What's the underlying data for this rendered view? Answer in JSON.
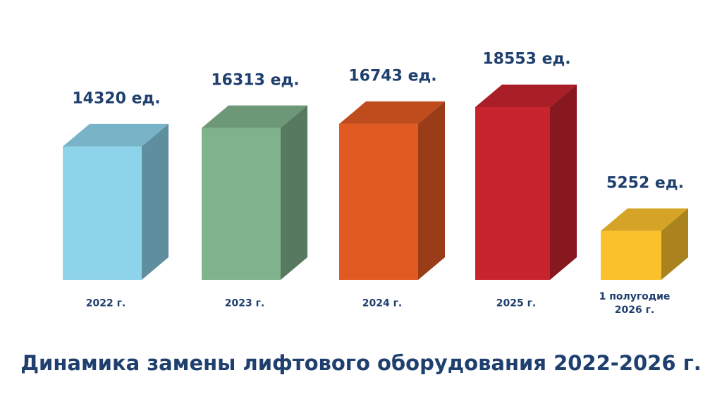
{
  "chart_data": {
    "type": "bar3d",
    "title": "Динамика замены лифтового оборудования 2022-2026 г.",
    "categories": [
      "2022 г.",
      "2023 г.",
      "2024 г.",
      "2025 г.",
      "1 полугодие 2026 г."
    ],
    "values": [
      14320,
      16313,
      16743,
      18553,
      5252
    ],
    "value_labels": [
      "14320 ед.",
      "16313 ед.",
      "16743 ед.",
      "18553 ед.",
      "5252 ед."
    ],
    "colors": [
      "#8dd3ea",
      "#7fb38c",
      "#e05a22",
      "#c8242e",
      "#fbc12d"
    ]
  }
}
